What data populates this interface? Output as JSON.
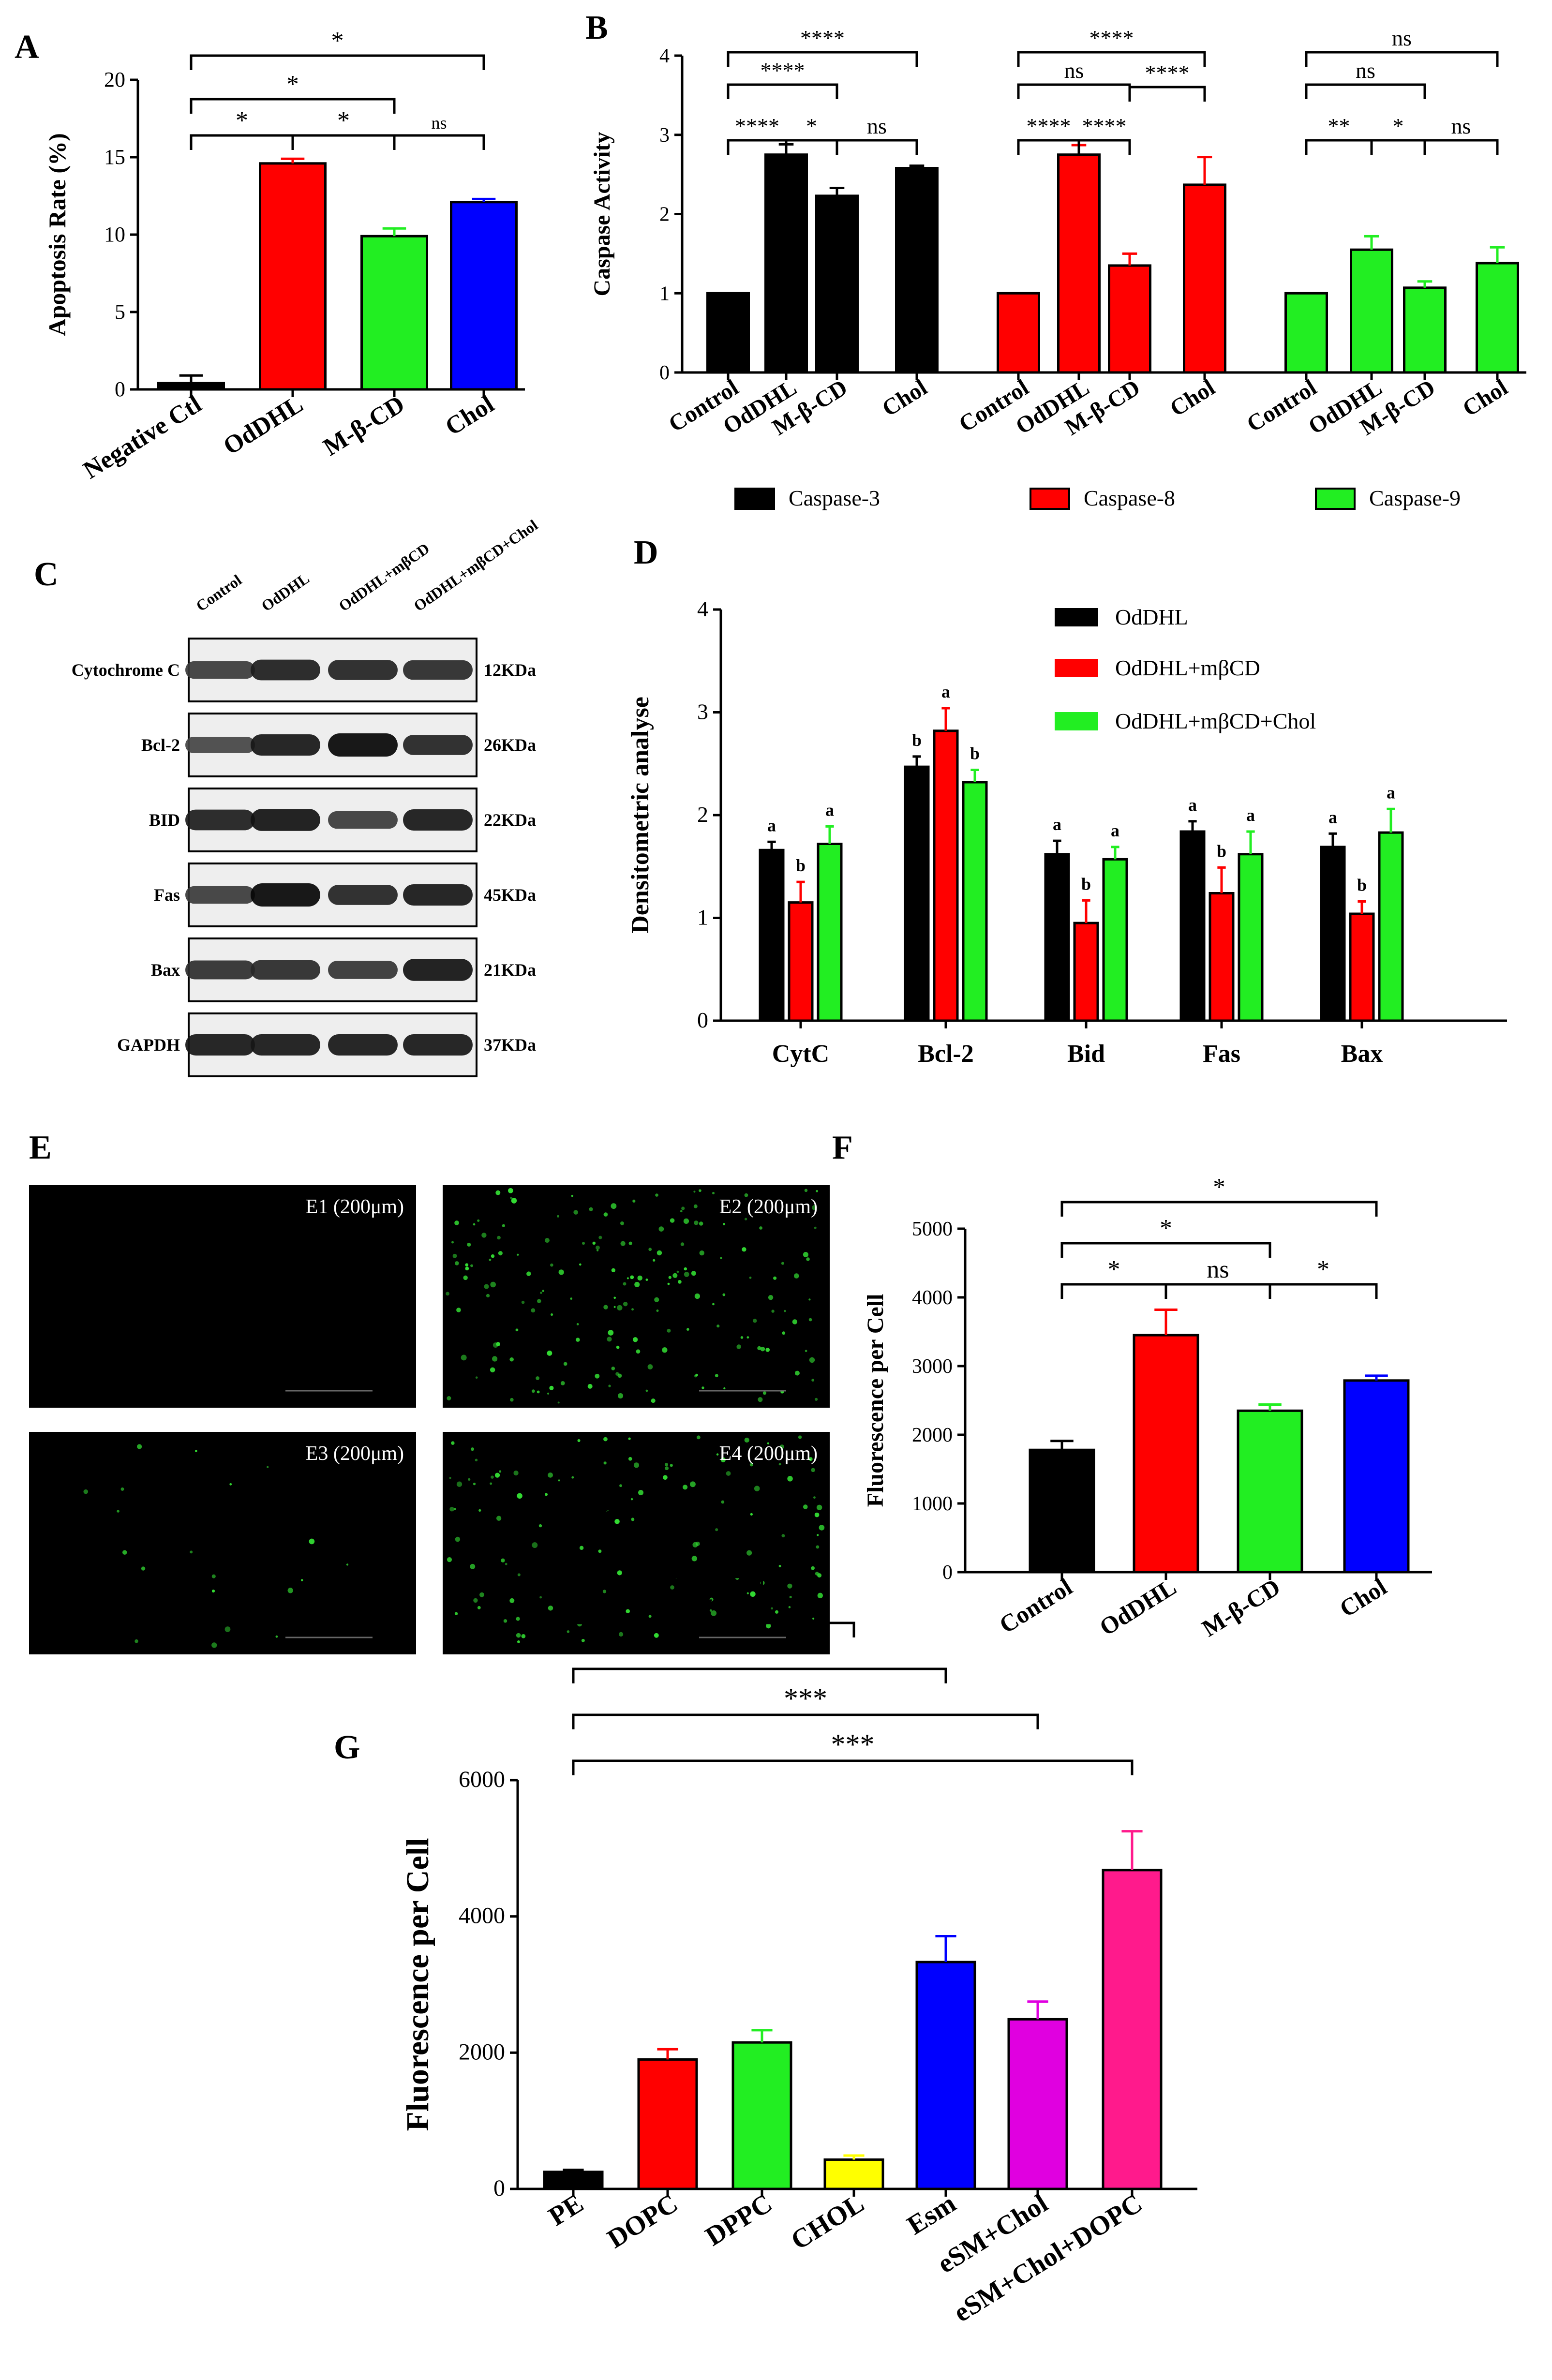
{
  "colors": {
    "black": "#000000",
    "red": "#ff0000",
    "green": "#22ee22",
    "blue": "#0000ff",
    "yellow": "#ffff00",
    "magenta": "#e000e0",
    "pink": "#ff1a8c",
    "micro_bg": "#000000",
    "micro_dot": "#33dd33"
  },
  "chart_data": [
    {
      "panel": "A",
      "type": "bar",
      "categories": [
        "Negative Ctl",
        "OdDHL",
        "M-β-CD",
        "Chol"
      ],
      "values": [
        0.4,
        14.6,
        9.9,
        12.1
      ],
      "errors": [
        0.5,
        0.3,
        0.5,
        0.2
      ],
      "colors": [
        "#000000",
        "#ff0000",
        "#22ee22",
        "#0000ff"
      ],
      "ylabel": "Apoptosis Rate (%)",
      "ylim": [
        0,
        20
      ],
      "yticks": [
        "0",
        "5",
        "10",
        "15",
        "20"
      ],
      "significance": [
        {
          "from": 0,
          "to": 3,
          "label": "*",
          "level": 2
        },
        {
          "from": 0,
          "to": 2,
          "label": "*",
          "level": 1
        },
        {
          "from": 0,
          "to": 1,
          "label": "*",
          "level": 0
        },
        {
          "from": 1,
          "to": 2,
          "label": "*",
          "level": 0
        },
        {
          "from": 2,
          "to": 3,
          "label": "ns",
          "level": 0
        }
      ]
    },
    {
      "panel": "B",
      "type": "bar",
      "groups": [
        {
          "categories": [
            "Control",
            "OdDHL",
            "M-β-CD",
            "Chol"
          ],
          "values": [
            1.0,
            2.75,
            2.23,
            2.58
          ],
          "errors": [
            0,
            0.13,
            0.1,
            0.03
          ],
          "color": "#000000"
        },
        {
          "categories": [
            "Control",
            "OdDHL",
            "M-β-CD",
            "Chol"
          ],
          "values": [
            1.0,
            2.75,
            1.35,
            2.37
          ],
          "errors": [
            0,
            0.12,
            0.15,
            0.35
          ],
          "color": "#ff0000"
        },
        {
          "categories": [
            "Control",
            "OdDHL",
            "M-β-CD",
            "Chol"
          ],
          "values": [
            1.0,
            1.55,
            1.07,
            1.38
          ],
          "errors": [
            0,
            0.17,
            0.08,
            0.2
          ],
          "color": "#22ee22"
        }
      ],
      "legend": [
        "Caspase-3",
        "Caspase-8",
        "Caspase-9"
      ],
      "ylabel": "Caspase Activity",
      "ylim": [
        0,
        4
      ],
      "yticks": [
        "0",
        "1",
        "2",
        "3",
        "4"
      ],
      "significance": [
        {
          "group": 0,
          "from": 0,
          "to": 3,
          "label": "****",
          "level": 3
        },
        {
          "group": 0,
          "from": 0,
          "to": 2,
          "label": "****",
          "level": 2
        },
        {
          "group": 0,
          "from": 0,
          "to": 1,
          "label": "****",
          "level": 0
        },
        {
          "group": 0,
          "from": 1,
          "to": 2,
          "label": "*",
          "level": 0
        },
        {
          "group": 0,
          "from": 2,
          "to": 3,
          "label": "ns",
          "level": 0
        },
        {
          "group": 1,
          "from": 0,
          "to": 3,
          "label": "****",
          "level": 3
        },
        {
          "group": 1,
          "from": 0,
          "to": 2,
          "label": "ns",
          "level": 2
        },
        {
          "group": 1,
          "from": 2,
          "to": 3,
          "label": "****",
          "level": 1.5
        },
        {
          "group": 1,
          "from": 0,
          "to": 1,
          "label": "****",
          "level": 0
        },
        {
          "group": 1,
          "from": 1,
          "to": 2,
          "label": "****",
          "level": 0
        },
        {
          "group": 2,
          "from": 0,
          "to": 3,
          "label": "ns",
          "level": 3
        },
        {
          "group": 2,
          "from": 0,
          "to": 2,
          "label": "ns",
          "level": 2
        },
        {
          "group": 2,
          "from": 0,
          "to": 1,
          "label": "**",
          "level": 0
        },
        {
          "group": 2,
          "from": 1,
          "to": 2,
          "label": "*",
          "level": 0
        },
        {
          "group": 2,
          "from": 2,
          "to": 3,
          "label": "ns",
          "level": 0
        }
      ]
    },
    {
      "panel": "D",
      "type": "bar",
      "categories": [
        "CytC",
        "Bcl-2",
        "Bid",
        "Fas",
        "Bax"
      ],
      "series": [
        {
          "name": "OdDHL",
          "values": [
            1.66,
            2.47,
            1.62,
            1.84,
            1.69
          ],
          "errors": [
            0.08,
            0.1,
            0.13,
            0.1,
            0.13
          ],
          "letters": [
            "a",
            "b",
            "a",
            "a",
            "a"
          ],
          "color": "#000000"
        },
        {
          "name": "OdDHL+mβCD",
          "values": [
            1.15,
            2.82,
            0.95,
            1.24,
            1.04
          ],
          "errors": [
            0.2,
            0.22,
            0.22,
            0.25,
            0.12
          ],
          "letters": [
            "b",
            "a",
            "b",
            "b",
            "b"
          ],
          "color": "#ff0000"
        },
        {
          "name": "OdDHL+mβCD+Chol",
          "values": [
            1.72,
            2.32,
            1.57,
            1.62,
            1.83
          ],
          "errors": [
            0.17,
            0.12,
            0.12,
            0.22,
            0.23
          ],
          "letters": [
            "a",
            "b",
            "a",
            "a",
            "a"
          ],
          "color": "#22ee22"
        }
      ],
      "ylabel": "Densitometric analyse",
      "ylim": [
        0,
        4
      ],
      "yticks": [
        "0",
        "1",
        "2",
        "3",
        "4"
      ]
    },
    {
      "panel": "F",
      "type": "bar",
      "categories": [
        "Control",
        "OdDHL",
        "M-β-CD",
        "Chol"
      ],
      "values": [
        1780,
        3450,
        2350,
        2790
      ],
      "errors": [
        130,
        370,
        90,
        70
      ],
      "colors": [
        "#000000",
        "#ff0000",
        "#22ee22",
        "#0000ff"
      ],
      "ylabel": "Fluorescence per Cell",
      "ylim": [
        0,
        5000
      ],
      "yticks": [
        "0",
        "1000",
        "2000",
        "3000",
        "4000",
        "5000"
      ],
      "significance": [
        {
          "from": 0,
          "to": 3,
          "label": "*",
          "level": 2
        },
        {
          "from": 0,
          "to": 2,
          "label": "*",
          "level": 1
        },
        {
          "from": 0,
          "to": 1,
          "label": "*",
          "level": 0
        },
        {
          "from": 1,
          "to": 2,
          "label": "ns",
          "level": 0
        },
        {
          "from": 2,
          "to": 3,
          "label": "*",
          "level": 0
        }
      ]
    },
    {
      "panel": "G",
      "type": "bar",
      "categories": [
        "PE",
        "DOPC",
        "DPPC",
        "CHOL",
        "Esm",
        "eSM+Chol",
        "eSM+Chol+DOPC"
      ],
      "values": [
        250,
        1900,
        2150,
        430,
        3330,
        2490,
        4680
      ],
      "errors": [
        30,
        150,
        180,
        60,
        380,
        260,
        570
      ],
      "colors": [
        "#000000",
        "#ff0000",
        "#22ee22",
        "#ffff00",
        "#0000ff",
        "#e000e0",
        "#ff1a8c"
      ],
      "ylabel": "Fluorescence per Cell",
      "ylim": [
        0,
        6000
      ],
      "yticks": [
        "0",
        "2000",
        "4000",
        "6000"
      ],
      "significance": [
        {
          "from": 0,
          "to": 6,
          "label": "***",
          "level": 5
        },
        {
          "from": 0,
          "to": 5,
          "label": "***",
          "level": 4
        },
        {
          "from": 0,
          "to": 4,
          "label": "***",
          "level": 3
        },
        {
          "from": 0,
          "to": 3,
          "label": "**",
          "level": 2
        },
        {
          "from": 0,
          "to": 2,
          "label": "***",
          "level": 1
        },
        {
          "from": 0,
          "to": 1,
          "label": "***",
          "level": 0
        }
      ]
    }
  ],
  "panel_labels": {
    "a": "A",
    "b": "B",
    "c": "C",
    "d": "D",
    "e": "E",
    "f": "F",
    "g": "G"
  },
  "western_blot": {
    "lane_labels": [
      "Control",
      "OdDHL",
      "OdDHL+mβCD",
      "OdDHL+mβCD+Chol"
    ],
    "rows": [
      {
        "protein": "Cytochrome C",
        "size": "12KDa"
      },
      {
        "protein": "Bcl-2",
        "size": "26KDa"
      },
      {
        "protein": "BID",
        "size": "22KDa"
      },
      {
        "protein": "Fas",
        "size": "45KDa"
      },
      {
        "protein": "Bax",
        "size": "21KDa"
      },
      {
        "protein": "GAPDH",
        "size": "37KDa"
      }
    ],
    "band_intensity": [
      [
        0.55,
        0.8,
        0.75,
        0.7
      ],
      [
        0.45,
        0.85,
        1.0,
        0.75
      ],
      [
        0.8,
        0.9,
        0.55,
        0.85
      ],
      [
        0.55,
        1.0,
        0.75,
        0.85
      ],
      [
        0.65,
        0.7,
        0.6,
        0.9
      ],
      [
        0.85,
        0.85,
        0.85,
        0.85
      ]
    ]
  },
  "micrographs": [
    {
      "label": "E1 (200μm)",
      "density": 0
    },
    {
      "label": "E2 (200μm)",
      "density": 180
    },
    {
      "label": "E3 (200μm)",
      "density": 20
    },
    {
      "label": "E4 (200μm)",
      "density": 120
    }
  ]
}
